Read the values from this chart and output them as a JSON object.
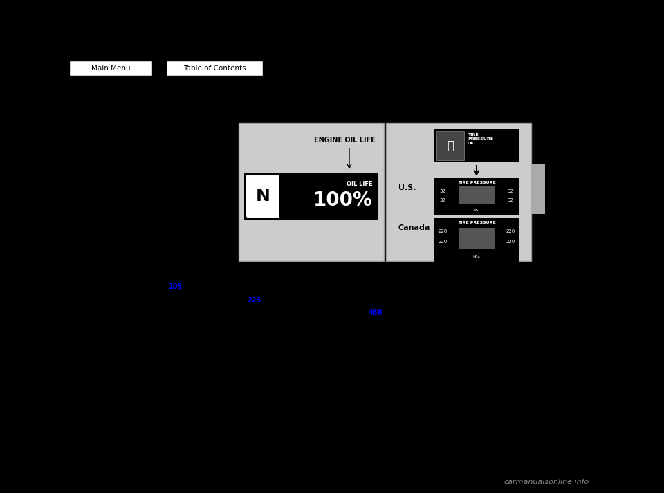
{
  "bg_color": "#000000",
  "button_bg": "#ffffff",
  "button_border": "#000000",
  "button_text_color": "#000000",
  "button1_text": "Main Menu",
  "button2_text": "Table of Contents",
  "left_panel_bg": "#cccccc",
  "right_panel_bg": "#cccccc",
  "side_tab_bg": "#aaaaaa",
  "engine_oil_label": "ENGINE OIL LIFE",
  "us_label": "U.S.",
  "canada_label": "Canada",
  "blue_link1": "105",
  "blue_link2": "225",
  "blue_link3": "488",
  "blue_color": "#0000ff",
  "watermark_text": "carmanualsonline.info",
  "watermark_color": "#888888"
}
